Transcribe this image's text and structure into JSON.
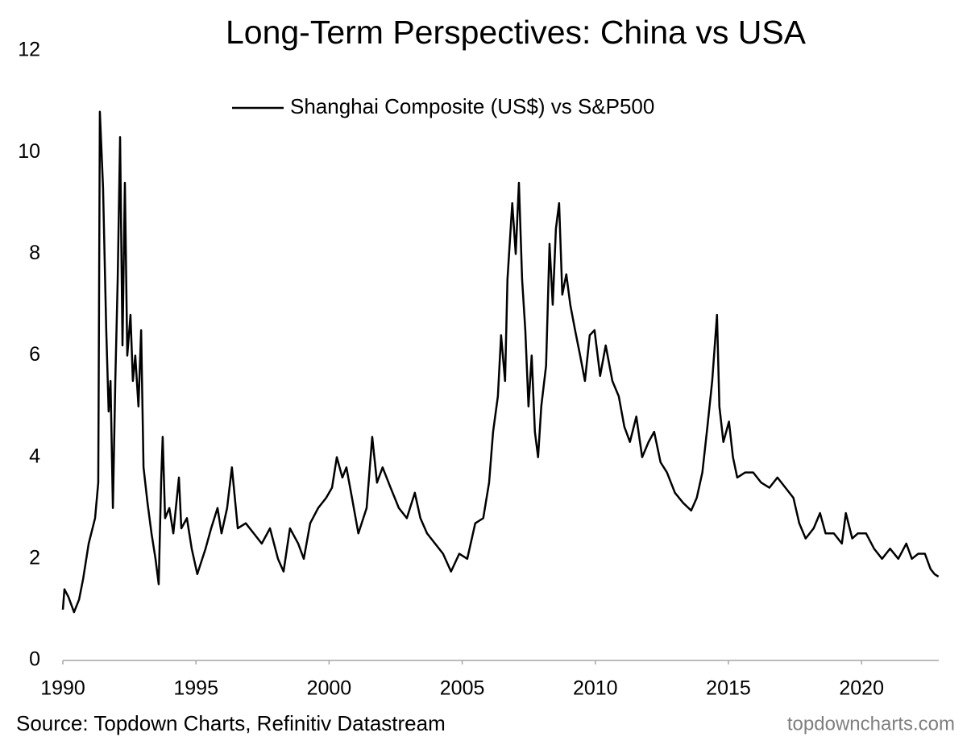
{
  "chart_data": {
    "type": "line",
    "title": "Long-Term Perspectives: China vs USA",
    "source": "Source: Topdown Charts, Refinitiv Datastream",
    "watermark": "topdowncharts.com",
    "legend_position": "top",
    "grid": false,
    "xlim": [
      1990,
      2022.9
    ],
    "xticks": [
      1990,
      1995,
      2000,
      2005,
      2010,
      2015,
      2020
    ],
    "ylim": [
      0,
      12
    ],
    "yticks": [
      0,
      2,
      4,
      6,
      8,
      10,
      12
    ],
    "x": [
      1990.0,
      1990.06,
      1990.21,
      1990.42,
      1990.61,
      1990.76,
      1990.97,
      1991.21,
      1991.33,
      1991.39,
      1991.51,
      1991.63,
      1991.72,
      1991.79,
      1991.88,
      1991.97,
      1992.06,
      1992.15,
      1992.24,
      1992.33,
      1992.42,
      1992.54,
      1992.63,
      1992.72,
      1992.84,
      1992.94,
      1993.03,
      1993.18,
      1993.33,
      1993.48,
      1993.6,
      1993.69,
      1993.75,
      1993.84,
      1994.0,
      1994.15,
      1994.36,
      1994.45,
      1994.66,
      1994.84,
      1995.05,
      1995.36,
      1995.57,
      1995.81,
      1995.96,
      1996.17,
      1996.35,
      1996.57,
      1996.87,
      1997.17,
      1997.47,
      1997.78,
      1998.08,
      1998.29,
      1998.53,
      1998.84,
      1999.05,
      1999.29,
      1999.59,
      1999.89,
      2000.11,
      2000.29,
      2000.5,
      2000.65,
      2000.86,
      2001.1,
      2001.41,
      2001.62,
      2001.8,
      2002.01,
      2002.31,
      2002.62,
      2002.92,
      2003.22,
      2003.43,
      2003.68,
      2003.98,
      2004.28,
      2004.58,
      2004.89,
      2005.19,
      2005.49,
      2005.79,
      2006.01,
      2006.16,
      2006.34,
      2006.46,
      2006.61,
      2006.7,
      2006.88,
      2007.01,
      2007.13,
      2007.25,
      2007.37,
      2007.49,
      2007.61,
      2007.73,
      2007.85,
      2007.97,
      2008.15,
      2008.28,
      2008.4,
      2008.52,
      2008.64,
      2008.76,
      2008.91,
      2009.06,
      2009.24,
      2009.43,
      2009.61,
      2009.79,
      2009.97,
      2010.18,
      2010.39,
      2010.64,
      2010.88,
      2011.09,
      2011.3,
      2011.54,
      2011.76,
      2012.0,
      2012.21,
      2012.45,
      2012.69,
      2012.99,
      2013.3,
      2013.6,
      2013.81,
      2014.02,
      2014.21,
      2014.39,
      2014.57,
      2014.66,
      2014.81,
      2015.02,
      2015.17,
      2015.33,
      2015.63,
      2015.93,
      2016.23,
      2016.54,
      2016.84,
      2017.14,
      2017.44,
      2017.66,
      2017.9,
      2018.2,
      2018.44,
      2018.65,
      2018.96,
      2019.26,
      2019.41,
      2019.65,
      2019.86,
      2020.17,
      2020.47,
      2020.77,
      2021.07,
      2021.38,
      2021.68,
      2021.89,
      2022.13,
      2022.38,
      2022.59,
      2022.74,
      2022.89
    ],
    "series": [
      {
        "name": "Shanghai Composite (US$) vs S&P500",
        "color": "#000000",
        "values": [
          1.0,
          1.4,
          1.25,
          0.95,
          1.2,
          1.6,
          2.3,
          2.8,
          3.5,
          10.8,
          9.3,
          6.5,
          4.9,
          5.5,
          3.0,
          5.5,
          7.5,
          10.3,
          6.2,
          9.4,
          6.0,
          6.8,
          5.5,
          6.0,
          5.0,
          6.5,
          3.8,
          3.1,
          2.5,
          2.0,
          1.5,
          3.5,
          4.4,
          2.8,
          3.0,
          2.5,
          3.6,
          2.6,
          2.8,
          2.2,
          1.7,
          2.2,
          2.6,
          3.0,
          2.5,
          3.0,
          3.8,
          2.6,
          2.7,
          2.5,
          2.3,
          2.6,
          2.0,
          1.75,
          2.6,
          2.3,
          2.0,
          2.7,
          3.0,
          3.2,
          3.4,
          4.0,
          3.6,
          3.8,
          3.2,
          2.5,
          3.0,
          4.4,
          3.5,
          3.8,
          3.4,
          3.0,
          2.8,
          3.3,
          2.8,
          2.5,
          2.3,
          2.1,
          1.75,
          2.1,
          2.0,
          2.7,
          2.8,
          3.5,
          4.5,
          5.2,
          6.4,
          5.5,
          7.5,
          9.0,
          8.0,
          9.4,
          7.5,
          6.5,
          5.0,
          6.0,
          4.5,
          4.0,
          5.0,
          5.8,
          8.2,
          7.0,
          8.5,
          9.0,
          7.2,
          7.6,
          7.0,
          6.5,
          6.0,
          5.5,
          6.4,
          6.5,
          5.6,
          6.2,
          5.5,
          5.2,
          4.6,
          4.3,
          4.8,
          4.0,
          4.3,
          4.5,
          3.9,
          3.7,
          3.3,
          3.1,
          2.95,
          3.2,
          3.7,
          4.6,
          5.5,
          6.8,
          5.0,
          4.3,
          4.7,
          4.0,
          3.6,
          3.7,
          3.7,
          3.5,
          3.4,
          3.6,
          3.4,
          3.2,
          2.7,
          2.4,
          2.6,
          2.9,
          2.5,
          2.5,
          2.3,
          2.9,
          2.4,
          2.5,
          2.5,
          2.2,
          2.0,
          2.2,
          2.0,
          2.3,
          2.0,
          2.1,
          2.1,
          1.8,
          1.7,
          1.65
        ]
      }
    ]
  }
}
